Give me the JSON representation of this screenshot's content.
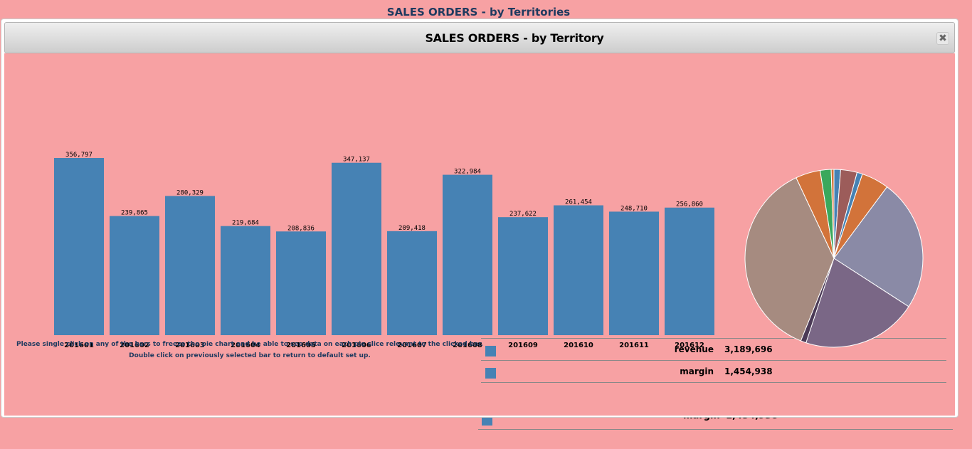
{
  "page": {
    "title": "SALES ORDERS - by Territories"
  },
  "dialog": {
    "title": "SALES ORDERS - by Territory",
    "close_glyph": "✖"
  },
  "notes": {
    "line1": "Please single click on any of the bars to freeze the pie chart and be able to see data on each pie slice relevant to the clicked bar.",
    "line2": "Double click on previously selected bar to return to default set up."
  },
  "legend": [
    {
      "label": "revenue",
      "value": "3,189,696",
      "color": "#4682b4"
    },
    {
      "label": "margin",
      "value": "1,454,938",
      "color": "#4682b4"
    }
  ],
  "background_legend": {
    "label": "margin",
    "value": "1,454,938"
  },
  "colors": {
    "bar": "#4682b4",
    "background": "#f7a1a3"
  },
  "chart_data": [
    {
      "type": "bar",
      "title": "",
      "xlabel": "",
      "ylabel": "",
      "categories": [
        "201601",
        "201602",
        "201603",
        "201604",
        "201605",
        "201606",
        "201607",
        "201608",
        "201609",
        "201610",
        "201611",
        "201612"
      ],
      "values": [
        356797,
        239865,
        280329,
        219684,
        208836,
        347137,
        209418,
        322984,
        237622,
        261454,
        248710,
        256860
      ],
      "value_labels": [
        "356,797",
        "239,865",
        "280,329",
        "219,684",
        "208,836",
        "347,137",
        "209,418",
        "322,984",
        "237,622",
        "261,454",
        "248,710",
        "256,860"
      ],
      "ylim": [
        0,
        356797
      ],
      "grid": false
    },
    {
      "type": "pie",
      "title": "",
      "slices": [
        {
          "value": 1.2,
          "color": "#4682b4"
        },
        {
          "value": 3.0,
          "color": "#9c5c5a"
        },
        {
          "value": 1.0,
          "color": "#4682b4"
        },
        {
          "value": 5.0,
          "color": "#d2733a"
        },
        {
          "value": 24.0,
          "color": "#8a8aa6"
        },
        {
          "value": 21.0,
          "color": "#7a6786"
        },
        {
          "value": 1.0,
          "color": "#4b3a56"
        },
        {
          "value": 37.0,
          "color": "#a68b80"
        },
        {
          "value": 4.5,
          "color": "#d2733a"
        },
        {
          "value": 2.0,
          "color": "#3aa85c"
        },
        {
          "value": 0.5,
          "color": "#d2733a"
        }
      ]
    }
  ]
}
